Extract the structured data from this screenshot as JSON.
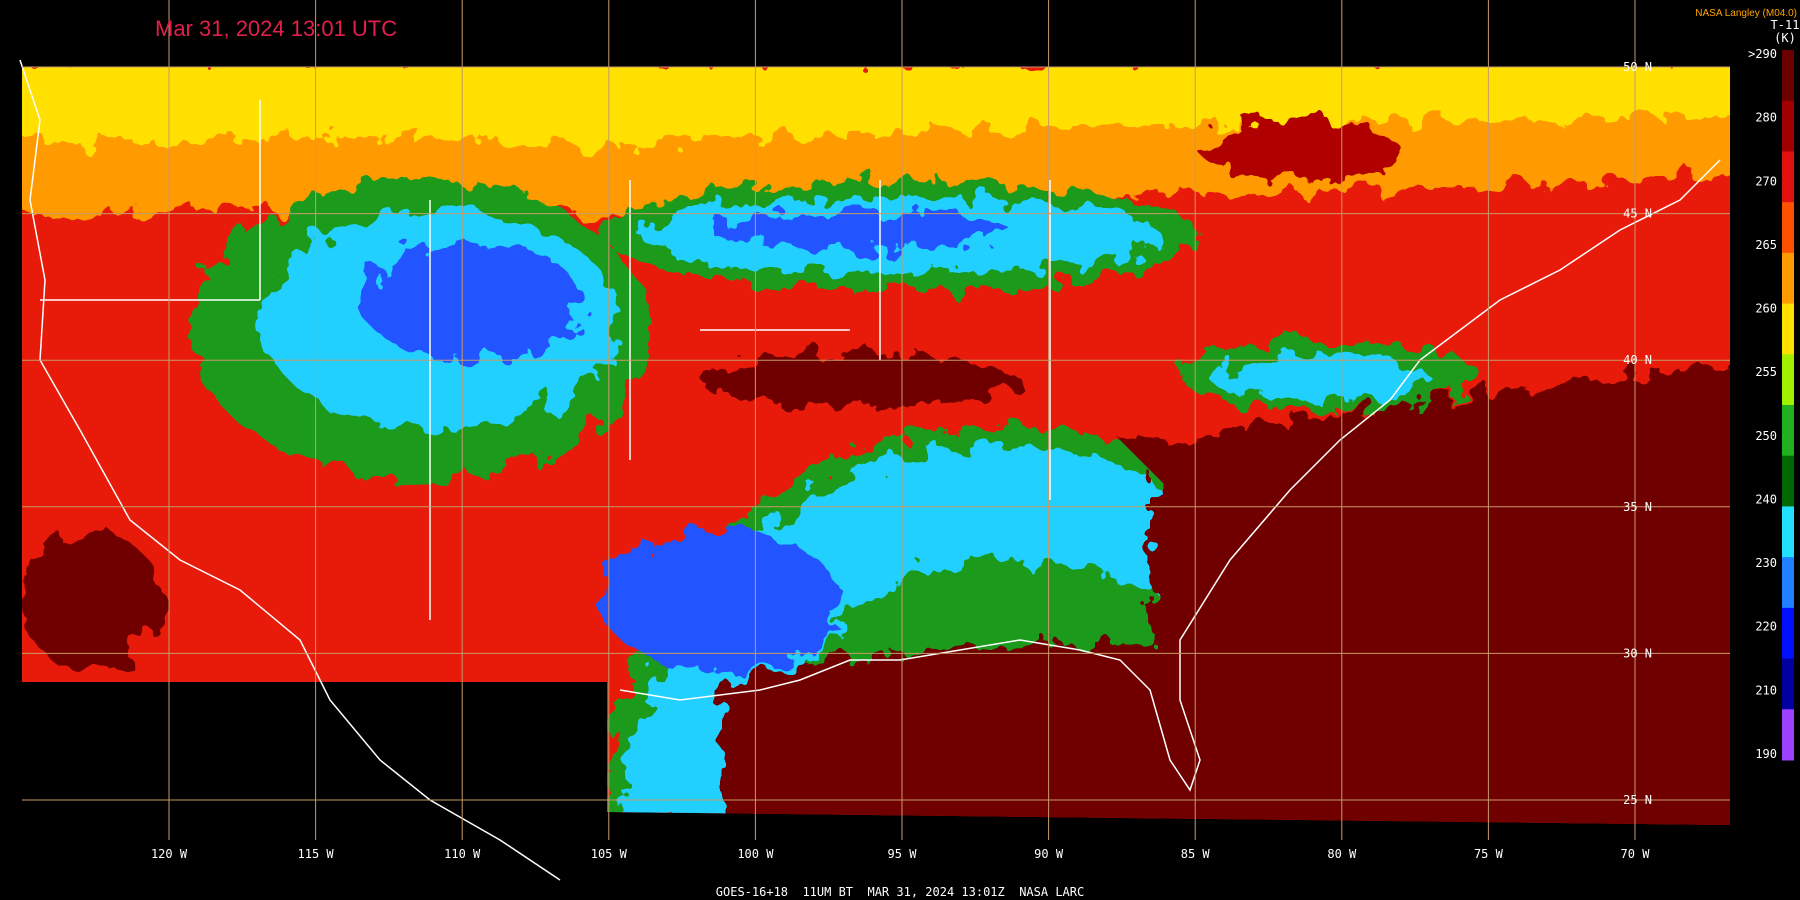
{
  "header": {
    "title": "Mar 31, 2024 13:01 UTC",
    "credit": "NASA Langley (M04.0)"
  },
  "colorbar": {
    "title": "T-11",
    "unit": "(K)",
    "labels": [
      ">290",
      "280",
      "270",
      "265",
      "260",
      "255",
      "250",
      "240",
      "230",
      "220",
      "210",
      "190"
    ]
  },
  "grid": {
    "longitudes": [
      "120 W",
      "115 W",
      "110 W",
      "105 W",
      "100 W",
      "95 W",
      "90 W",
      "85 W",
      "80 W",
      "75 W",
      "70 W"
    ],
    "latitudes": [
      "50 N",
      "45 N",
      "40 N",
      "35 N",
      "30 N",
      "25 N"
    ]
  },
  "footer": "GOES-16+18  11UM BT  MAR 31, 2024 13:01Z  NASA LARC"
}
